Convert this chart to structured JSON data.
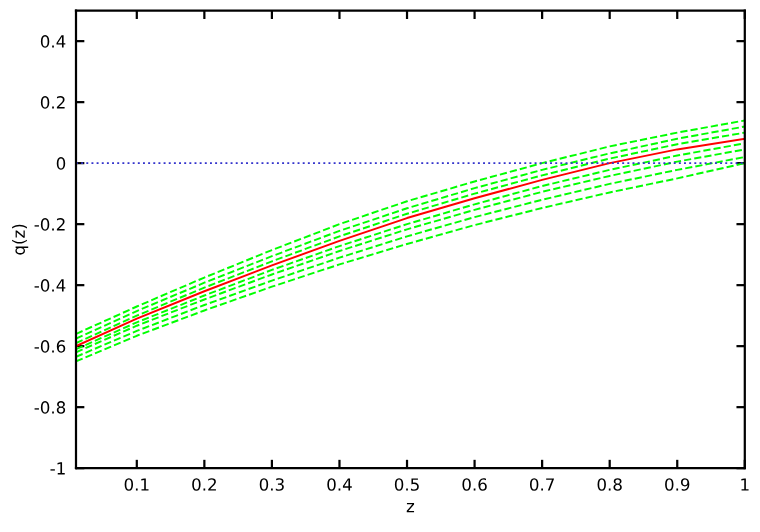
{
  "chart_data": {
    "type": "line",
    "xlabel": "z",
    "ylabel": "q(z)",
    "xlim": [
      0.01,
      1
    ],
    "ylim": [
      -1,
      0.5
    ],
    "xticks": [
      0.1,
      0.2,
      0.3,
      0.4,
      0.5,
      0.6,
      0.7,
      0.8,
      0.9,
      1
    ],
    "yticks": [
      -1,
      -0.8,
      -0.6,
      -0.4,
      -0.2,
      0,
      0.2,
      0.4
    ],
    "x": [
      0.01,
      0.1,
      0.2,
      0.3,
      0.4,
      0.5,
      0.6,
      0.7,
      0.8,
      0.9,
      1
    ],
    "grid": false,
    "legend": false,
    "marker": "none",
    "series": [
      {
        "color": "#00ff00",
        "line_style": "dashed",
        "values": [
          -0.56,
          -0.47,
          -0.375,
          -0.285,
          -0.2,
          -0.125,
          -0.06,
          0.0,
          0.055,
          0.1,
          0.14
        ]
      },
      {
        "color": "#00ff00",
        "line_style": "dashed",
        "values": [
          -0.575,
          -0.485,
          -0.392,
          -0.305,
          -0.222,
          -0.148,
          -0.082,
          -0.022,
          0.032,
          0.08,
          0.12
        ]
      },
      {
        "color": "#00ff00",
        "line_style": "dashed",
        "values": [
          -0.59,
          -0.5,
          -0.408,
          -0.322,
          -0.24,
          -0.166,
          -0.1,
          -0.04,
          0.015,
          0.062,
          0.1
        ]
      },
      {
        "color": "#00ff00",
        "line_style": "dashed",
        "values": [
          -0.61,
          -0.522,
          -0.434,
          -0.35,
          -0.272,
          -0.2,
          -0.135,
          -0.075,
          -0.022,
          0.025,
          0.065
        ]
      },
      {
        "color": "#00ff00",
        "line_style": "dashed",
        "values": [
          -0.62,
          -0.533,
          -0.447,
          -0.365,
          -0.288,
          -0.217,
          -0.153,
          -0.094,
          -0.042,
          0.005,
          0.045
        ]
      },
      {
        "color": "#00ff00",
        "line_style": "dashed",
        "values": [
          -0.635,
          -0.55,
          -0.465,
          -0.385,
          -0.31,
          -0.24,
          -0.177,
          -0.12,
          -0.068,
          -0.022,
          0.02
        ]
      },
      {
        "color": "#00ff00",
        "line_style": "dashed",
        "values": [
          -0.65,
          -0.566,
          -0.483,
          -0.405,
          -0.332,
          -0.265,
          -0.203,
          -0.147,
          -0.096,
          -0.05,
          0.0
        ]
      },
      {
        "color": "#ff0000",
        "line_style": "solid",
        "values": [
          -0.6,
          -0.51,
          -0.42,
          -0.335,
          -0.255,
          -0.18,
          -0.115,
          -0.055,
          0.0,
          0.045,
          0.08
        ]
      }
    ],
    "ref_lines": [
      {
        "axis": "y",
        "value": 0,
        "color": "#3333cc",
        "line_style": "dotted"
      }
    ]
  }
}
